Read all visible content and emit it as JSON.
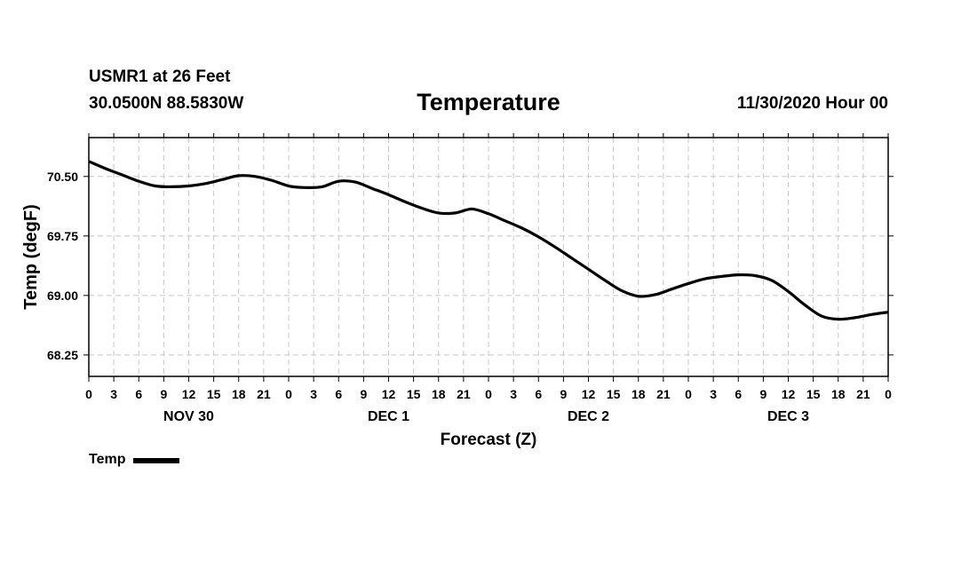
{
  "header": {
    "station": "USMR1 at 26 Feet",
    "coords": "30.0500N 88.5830W",
    "title": "Temperature",
    "datetime": "11/30/2020 Hour 00"
  },
  "legend": {
    "label": "Temp"
  },
  "chart_data": {
    "type": "line",
    "title": "Temperature",
    "xlabel": "Forecast (Z)",
    "ylabel": "Temp (degF)",
    "x_unit": "forecast hour",
    "xlim": [
      0,
      96
    ],
    "ylim": [
      67.98,
      70.99
    ],
    "y_ticks": [
      68.25,
      69.0,
      69.75,
      70.5
    ],
    "y_tick_labels": [
      "68.25",
      "69.00",
      "69.75",
      "70.50"
    ],
    "x_ticks": [
      0,
      3,
      6,
      9,
      12,
      15,
      18,
      21,
      24,
      27,
      30,
      33,
      36,
      39,
      42,
      45,
      48,
      51,
      54,
      57,
      60,
      63,
      66,
      69,
      72,
      75,
      78,
      81,
      84,
      87,
      90,
      93,
      96
    ],
    "x_tick_labels": [
      "0",
      "3",
      "6",
      "9",
      "12",
      "15",
      "18",
      "21",
      "0",
      "3",
      "6",
      "9",
      "12",
      "15",
      "18",
      "21",
      "0",
      "3",
      "6",
      "9",
      "12",
      "15",
      "18",
      "21",
      "0",
      "3",
      "6",
      "9",
      "12",
      "15",
      "18",
      "21",
      "0"
    ],
    "day_labels": [
      {
        "label": "NOV 30",
        "at_hour": 12
      },
      {
        "label": "DEC 1",
        "at_hour": 36
      },
      {
        "label": "DEC 2",
        "at_hour": 60
      },
      {
        "label": "DEC 3",
        "at_hour": 84
      }
    ],
    "grid": true,
    "legend_position": "bottom-left",
    "series": [
      {
        "name": "Temp",
        "color": "#000000",
        "x": [
          0,
          2,
          4,
          6,
          8,
          10,
          12,
          14,
          16,
          18,
          20,
          22,
          24,
          26,
          28,
          30,
          32,
          34,
          36,
          38,
          40,
          42,
          44,
          46,
          48,
          50,
          52,
          54,
          56,
          58,
          60,
          62,
          64,
          66,
          68,
          70,
          72,
          74,
          76,
          78,
          80,
          82,
          84,
          86,
          88,
          90,
          92,
          94,
          96
        ],
        "y": [
          70.69,
          70.6,
          70.52,
          70.44,
          70.38,
          70.37,
          70.38,
          70.41,
          70.46,
          70.51,
          70.5,
          70.45,
          70.38,
          70.36,
          70.37,
          70.44,
          70.43,
          70.35,
          70.27,
          70.18,
          70.1,
          70.04,
          70.04,
          70.09,
          70.03,
          69.94,
          69.85,
          69.74,
          69.61,
          69.47,
          69.33,
          69.19,
          69.06,
          68.99,
          69.01,
          69.08,
          69.15,
          69.21,
          69.24,
          69.26,
          69.25,
          69.19,
          69.05,
          68.88,
          68.74,
          68.7,
          68.72,
          68.76,
          68.79
        ]
      }
    ]
  }
}
